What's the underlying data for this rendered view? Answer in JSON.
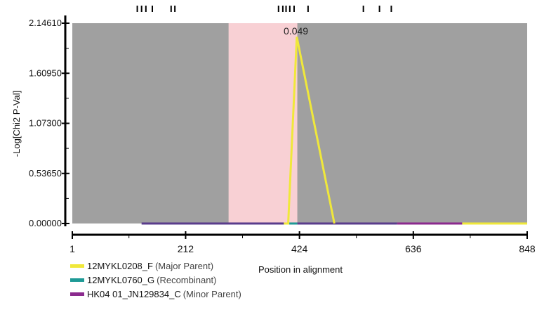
{
  "chart_data": {
    "type": "line",
    "ylabel": "-Log[Chi2 P-Val]",
    "xlabel": "Position in alignment",
    "xlim": [
      1,
      848
    ],
    "ylim": [
      0,
      2.1461
    ],
    "x_ticks": [
      "1",
      "212",
      "424",
      "636",
      "848"
    ],
    "y_ticks": [
      "0.00000",
      "0.53650",
      "1.07300",
      "1.60950",
      "2.14610"
    ],
    "highlight_region": [
      292,
      420
    ],
    "peak_annotation": {
      "x": 420,
      "y": 2.0,
      "text": "0.049"
    },
    "site_marks": [
      122,
      130,
      138,
      150,
      185,
      192,
      385,
      393,
      399,
      406,
      414,
      440,
      543,
      573,
      595
    ],
    "series": [
      {
        "name": "12MYKL0208_F",
        "role": "(Major Parent)",
        "color": "#f0e83a",
        "x": [
          395,
          403,
          419,
          489
        ],
        "y": [
          0,
          0,
          2.0,
          0
        ]
      },
      {
        "name": "12MYKL0760_G",
        "role": "(Recombinant)",
        "color": "#1e9a96",
        "x": [],
        "y": []
      },
      {
        "name": "HK04 01_JN129834_C",
        "role": "(Minor Parent)",
        "color": "#8b2a8e",
        "x": [],
        "y": []
      }
    ],
    "baseline_segments": [
      {
        "from": 130,
        "to": 395,
        "color": "#5a3c8c"
      },
      {
        "from": 395,
        "to": 405,
        "color": "#f0e83a"
      },
      {
        "from": 405,
        "to": 420,
        "color": "#1e9a96"
      },
      {
        "from": 420,
        "to": 606,
        "color": "#5a3c8c"
      },
      {
        "from": 606,
        "to": 727,
        "color": "#8b2a8e"
      },
      {
        "from": 727,
        "to": 848,
        "color": "#f0e83a"
      }
    ],
    "colors": {
      "plot_bg": "#a0a0a0",
      "highlight": "#f8d0d4"
    }
  }
}
